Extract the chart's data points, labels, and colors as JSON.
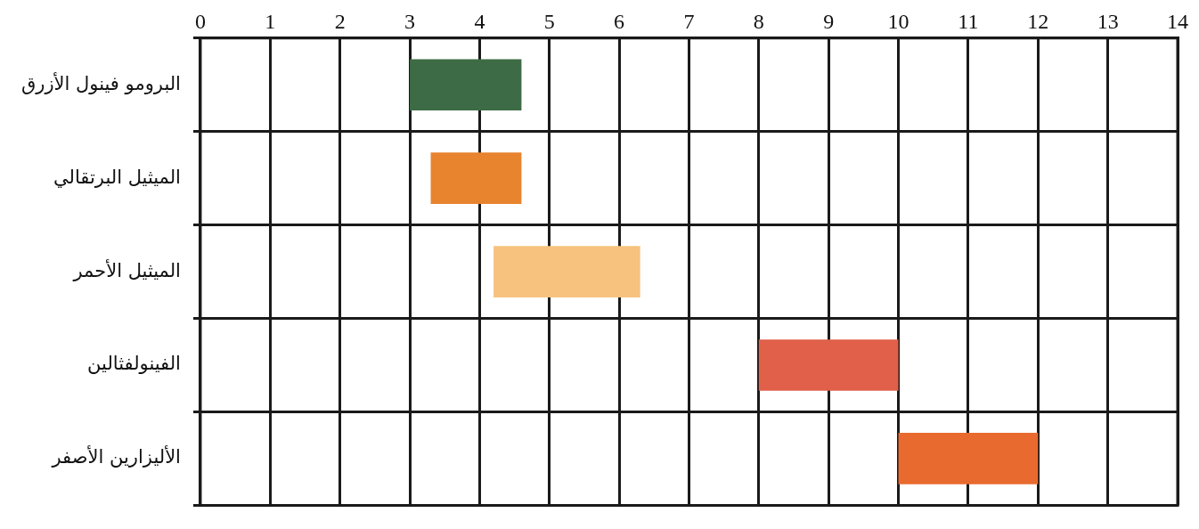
{
  "chart_data": {
    "type": "bar",
    "orientation": "horizontal",
    "categories": [
      "البرومو فينول الأزرق",
      "الميثيل البرتقالي",
      "الميثيل الأحمر",
      "الفينولفثالين",
      "الأليزارين الأصفر"
    ],
    "base": [
      3,
      3.3,
      4.2,
      8,
      10
    ],
    "values": [
      1.6,
      1.3,
      2.1,
      2,
      2
    ],
    "colors": [
      "#3d6b45",
      "#e8832e",
      "#f7c27e",
      "#e0604a",
      "#e86a2e"
    ],
    "xlim": [
      0,
      14
    ],
    "xticks": [
      0,
      1,
      2,
      3,
      4,
      5,
      6,
      7,
      8,
      9,
      10,
      11,
      12,
      13,
      14
    ],
    "grid": true
  }
}
